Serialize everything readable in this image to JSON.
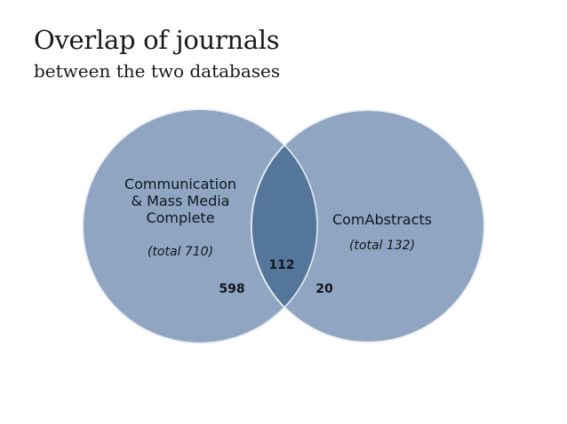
{
  "slide": {
    "title": "Overlap of journals",
    "subtitle": "between the two databases"
  },
  "venn": {
    "left_set": {
      "name_lines": [
        "Communication",
        "& Mass Media",
        "Complete"
      ],
      "total": "(total 710)",
      "only_count": "598"
    },
    "right_set": {
      "name": "ComAbstracts",
      "total": "(total 132)",
      "only_count": "20"
    },
    "overlap_count": "112",
    "colors": {
      "circle_fill": "#8fa5c1",
      "overlap_fill": "#55769b",
      "circle_stroke": "#ffffff"
    }
  }
}
